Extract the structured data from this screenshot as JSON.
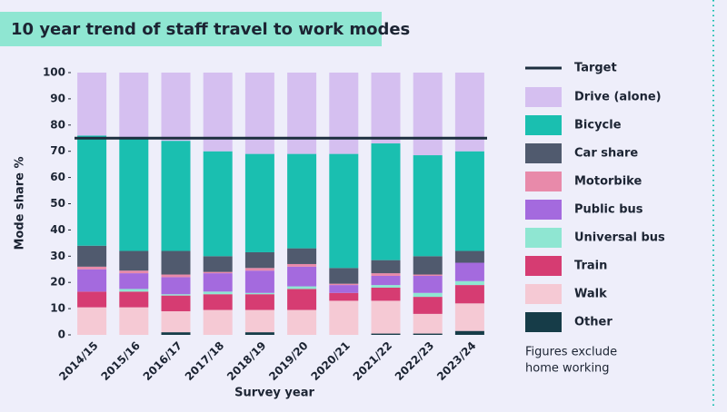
{
  "chart_data": {
    "type": "stacked_bar",
    "title": "10 year trend of staff travel to work modes",
    "y_label": "Mode share %",
    "x_label": "Survey year",
    "note_lines": [
      "Figures exclude",
      "home working"
    ],
    "categories": [
      "2014/15",
      "2015/16",
      "2016/17",
      "2017/18",
      "2018/19",
      "2019/20",
      "2020/21",
      "2021/22",
      "2022/23",
      "2023/24"
    ],
    "series": [
      {
        "name": "Other",
        "color": "#163c48",
        "values": [
          0,
          0,
          1,
          0,
          1,
          0,
          0,
          0.5,
          0.5,
          1.5
        ]
      },
      {
        "name": "Walk",
        "color": "#f5c9d4",
        "values": [
          10.5,
          10.5,
          8,
          9.5,
          8.5,
          9.5,
          13,
          12.5,
          7.5,
          10.5
        ]
      },
      {
        "name": "Train",
        "color": "#d63c72",
        "values": [
          6,
          6,
          6,
          6,
          6,
          8,
          3,
          5,
          6.5,
          7
        ]
      },
      {
        "name": "Universal bus",
        "color": "#8fe6d2",
        "values": [
          0,
          1,
          0.5,
          1,
          0.5,
          1,
          0,
          1,
          1.5,
          1.5
        ]
      },
      {
        "name": "Public bus",
        "color": "#a46ade",
        "values": [
          8.5,
          6,
          6.5,
          7,
          8.5,
          7.5,
          3,
          3.5,
          6.5,
          7
        ]
      },
      {
        "name": "Motorbike",
        "color": "#e88aaa",
        "values": [
          1,
          1,
          1,
          0.5,
          1,
          1,
          0.5,
          1,
          0.5,
          0
        ]
      },
      {
        "name": "Car share",
        "color": "#505a6e",
        "values": [
          8,
          7.5,
          9,
          6,
          6,
          6,
          6,
          5,
          7,
          4.5
        ]
      },
      {
        "name": "Bicycle",
        "color": "#1abfb0",
        "values": [
          42,
          43,
          42,
          40,
          37.5,
          36,
          43.5,
          44.5,
          38.5,
          38
        ]
      },
      {
        "name": "Drive (alone)",
        "color": "#d5bff0",
        "values": [
          24,
          25,
          26,
          30,
          31,
          31,
          31,
          27,
          31.5,
          30
        ]
      }
    ],
    "target": {
      "name": "Target",
      "value": 75,
      "color": "#1c2e3e"
    },
    "ylim": [
      0,
      100
    ],
    "yticks": [
      0,
      10,
      20,
      30,
      40,
      50,
      60,
      70,
      80,
      90,
      100
    ]
  }
}
